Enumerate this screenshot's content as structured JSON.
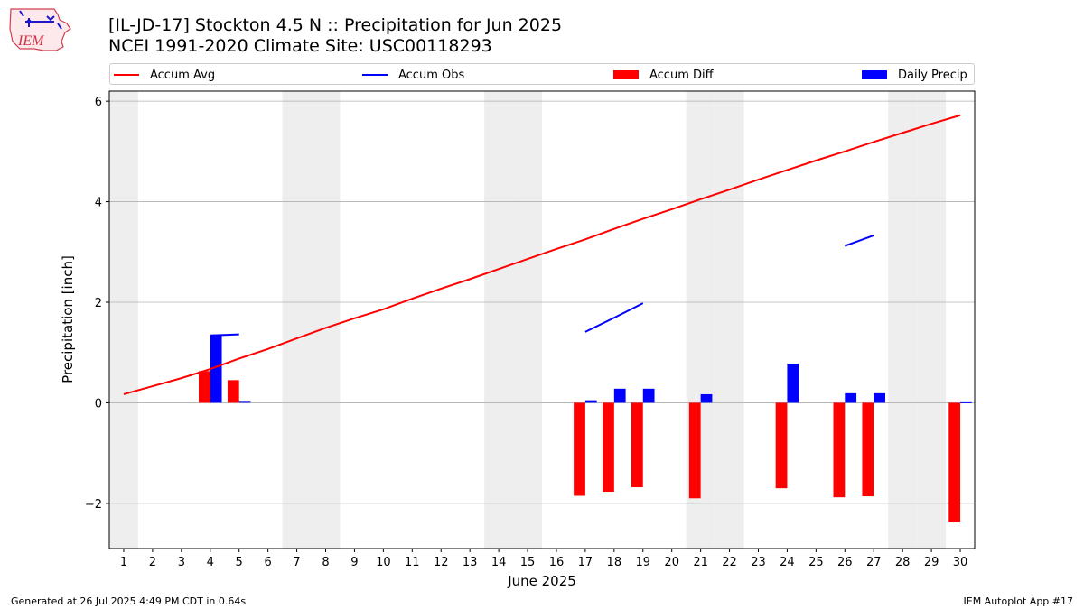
{
  "page": {
    "title_line1": "[IL-JD-17] Stockton 4.5 N :: Precipitation for Jun 2025",
    "title_line2": "NCEI 1991-2020 Climate Site: USC00118293",
    "footer_left": "Generated at 26 Jul 2025 4:49 PM CDT in 0.64s",
    "footer_right": "IEM Autoplot App #17",
    "logo_text": "IEM"
  },
  "legend": {
    "accum_avg": "Accum Avg",
    "accum_obs": "Accum Obs",
    "accum_diff": "Accum Diff",
    "daily_precip": "Daily Precip",
    "placement": "top, spanning plot width"
  },
  "colors": {
    "accum_avg": "#ff0000",
    "accum_obs": "#0000ff",
    "accum_diff": "#ff0000",
    "daily_precip": "#0000ff",
    "weekend_shade": "#eeeeee",
    "grid": "#b0b0b0"
  },
  "chart_data": {
    "type": "bar",
    "xlabel": "June 2025",
    "ylabel": "Precipitation [inch]",
    "xlim": [
      0.5,
      30.5
    ],
    "ylim": [
      -2.9,
      6.2
    ],
    "grid": "horizontal",
    "x_ticks": [
      1,
      2,
      3,
      4,
      5,
      6,
      7,
      8,
      9,
      10,
      11,
      12,
      13,
      14,
      15,
      16,
      17,
      18,
      19,
      20,
      21,
      22,
      23,
      24,
      25,
      26,
      27,
      28,
      29,
      30
    ],
    "y_ticks": [
      -2,
      0,
      2,
      4,
      6
    ],
    "y_tick_labels": [
      "−2",
      "0",
      "2",
      "4",
      "6"
    ],
    "weekend_days": [
      1,
      7,
      8,
      14,
      15,
      21,
      22,
      28,
      29
    ],
    "series": [
      {
        "name": "Accum Avg",
        "type": "line",
        "x": [
          1,
          2,
          3,
          4,
          5,
          6,
          7,
          8,
          9,
          10,
          11,
          12,
          13,
          14,
          15,
          16,
          17,
          18,
          19,
          20,
          21,
          22,
          23,
          24,
          25,
          26,
          27,
          28,
          29,
          30
        ],
        "values": [
          0.17,
          0.33,
          0.49,
          0.67,
          0.88,
          1.07,
          1.28,
          1.49,
          1.68,
          1.86,
          2.07,
          2.27,
          2.46,
          2.66,
          2.86,
          3.06,
          3.25,
          3.46,
          3.66,
          3.85,
          4.05,
          4.24,
          4.44,
          4.63,
          4.82,
          5.0,
          5.19,
          5.37,
          5.55,
          5.72
        ]
      },
      {
        "name": "Accum Obs",
        "type": "line",
        "segments": [
          {
            "x": [
              4,
              5
            ],
            "values": [
              1.34,
              1.36
            ]
          },
          {
            "x": [
              17,
              18,
              19
            ],
            "values": [
              1.41,
              1.69,
              1.98
            ]
          },
          {
            "x": [
              26,
              27
            ],
            "values": [
              3.12,
              3.33
            ]
          }
        ]
      },
      {
        "name": "Accum Diff",
        "type": "bar",
        "x": [
          4,
          5,
          17,
          18,
          19,
          21,
          24,
          26,
          27,
          30
        ],
        "values": [
          0.63,
          0.45,
          -1.85,
          -1.77,
          -1.68,
          -1.9,
          -1.7,
          -1.88,
          -1.86,
          -2.38
        ]
      },
      {
        "name": "Daily Precip",
        "type": "bar",
        "x": [
          4,
          5,
          17,
          18,
          19,
          21,
          24,
          26,
          27,
          30
        ],
        "values": [
          1.34,
          0.02,
          0.05,
          0.28,
          0.28,
          0.17,
          0.78,
          0.19,
          0.19,
          0.01
        ]
      }
    ]
  }
}
